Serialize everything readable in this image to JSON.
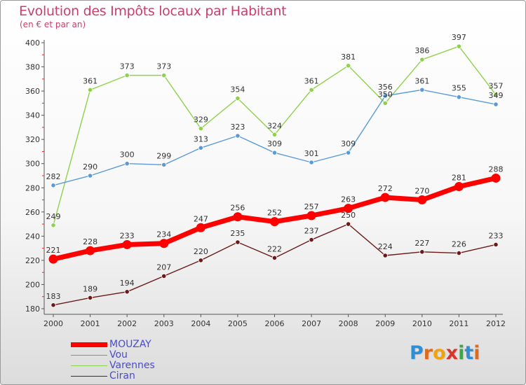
{
  "header": {
    "title": "Evolution des Impôts locaux par Habitant",
    "subtitle": "(en € et par an)"
  },
  "logo": {
    "text": "Proxiti",
    "letters": [
      "P",
      "r",
      "o",
      "x",
      "i",
      "t",
      "i"
    ],
    "colors": [
      "#2f8fd6",
      "#e06a1a",
      "#f0a30a",
      "#d9342b",
      "#3aa845",
      "#2f8fd6",
      "#e06a1a"
    ]
  },
  "chart_data": {
    "type": "line",
    "categories": [
      "2000",
      "2001",
      "2002",
      "2003",
      "2004",
      "2005",
      "2006",
      "2007",
      "2008",
      "2009",
      "2010",
      "2011",
      "2012"
    ],
    "ylim": [
      180,
      400
    ],
    "yticks": [
      180,
      200,
      220,
      240,
      260,
      280,
      300,
      320,
      340,
      360,
      380,
      400
    ],
    "grid": false,
    "legend_placement": "bottom-left",
    "series": [
      {
        "name": "MOUZAY",
        "color": "#ff0000",
        "values": [
          221,
          228,
          233,
          234,
          247,
          256,
          252,
          257,
          263,
          272,
          270,
          281,
          288
        ]
      },
      {
        "name": "Vou",
        "color": "#5b9bd5",
        "values": [
          282,
          290,
          300,
          299,
          313,
          323,
          309,
          301,
          309,
          356,
          361,
          355,
          349
        ]
      },
      {
        "name": "Varennes",
        "color": "#8ed24c",
        "values": [
          249,
          361,
          373,
          373,
          329,
          354,
          324,
          361,
          381,
          350,
          386,
          397,
          357
        ]
      },
      {
        "name": "Ciran",
        "color": "#6b1a1a",
        "values": [
          183,
          189,
          194,
          207,
          220,
          235,
          222,
          237,
          250,
          224,
          227,
          226,
          233
        ]
      }
    ]
  }
}
